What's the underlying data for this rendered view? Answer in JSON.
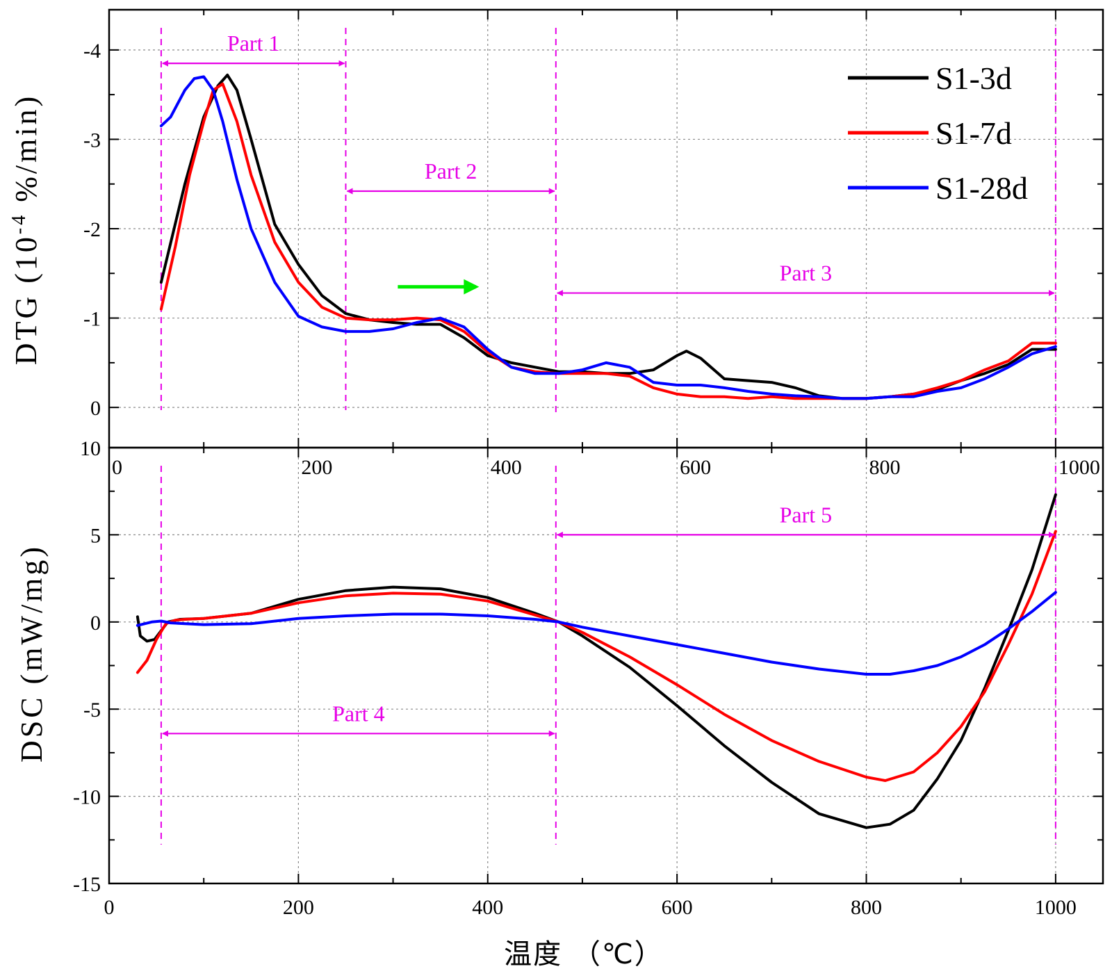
{
  "chart_data": [
    {
      "type": "line",
      "panel": "top",
      "ylabel": "DTG (10⁻⁴ %/min)",
      "ylabel_main": "DTG (10",
      "ylabel_sup": "-4",
      "ylabel_rest": " %/min)",
      "xlim": [
        0,
        1050
      ],
      "ylim": [
        0.45,
        -4.45
      ],
      "yticks": [
        -4,
        -3,
        -2,
        -1,
        0
      ],
      "ytick_labels": [
        "-4",
        "-3",
        "-2",
        "-1",
        "0"
      ],
      "xticks": [
        0,
        200,
        400,
        600,
        800,
        1000
      ],
      "xtick_labels": [
        "0",
        "200",
        "400",
        "600",
        "800",
        "1000"
      ],
      "grid": true,
      "legend_position": "top-right",
      "series": [
        {
          "name": "S1-3d",
          "color": "#000000",
          "x": [
            55,
            80,
            100,
            115,
            125,
            135,
            150,
            175,
            200,
            225,
            250,
            275,
            300,
            325,
            350,
            375,
            400,
            425,
            450,
            475,
            500,
            525,
            550,
            575,
            600,
            610,
            625,
            650,
            675,
            700,
            725,
            750,
            775,
            800,
            825,
            850,
            875,
            900,
            925,
            950,
            975,
            1000
          ],
          "y": [
            -1.4,
            -2.5,
            -3.25,
            -3.6,
            -3.72,
            -3.55,
            -3.0,
            -2.05,
            -1.6,
            -1.25,
            -1.05,
            -0.98,
            -0.95,
            -0.93,
            -0.93,
            -0.78,
            -0.58,
            -0.5,
            -0.45,
            -0.4,
            -0.4,
            -0.38,
            -0.38,
            -0.42,
            -0.58,
            -0.63,
            -0.55,
            -0.32,
            -0.3,
            -0.28,
            -0.22,
            -0.13,
            -0.1,
            -0.1,
            -0.12,
            -0.15,
            -0.2,
            -0.3,
            -0.38,
            -0.48,
            -0.65,
            -0.65
          ]
        },
        {
          "name": "S1-7d",
          "color": "#ff0000",
          "x": [
            55,
            70,
            85,
            100,
            110,
            120,
            135,
            150,
            175,
            200,
            225,
            250,
            275,
            300,
            325,
            350,
            375,
            400,
            425,
            450,
            475,
            500,
            525,
            550,
            575,
            600,
            625,
            650,
            675,
            700,
            725,
            750,
            775,
            800,
            825,
            850,
            875,
            900,
            925,
            950,
            975,
            1000
          ],
          "y": [
            -1.1,
            -1.8,
            -2.6,
            -3.2,
            -3.55,
            -3.62,
            -3.2,
            -2.6,
            -1.85,
            -1.4,
            -1.12,
            -1.0,
            -0.98,
            -0.98,
            -1.0,
            -0.98,
            -0.85,
            -0.62,
            -0.45,
            -0.4,
            -0.38,
            -0.38,
            -0.38,
            -0.35,
            -0.22,
            -0.15,
            -0.12,
            -0.12,
            -0.1,
            -0.12,
            -0.1,
            -0.1,
            -0.1,
            -0.1,
            -0.12,
            -0.15,
            -0.22,
            -0.3,
            -0.42,
            -0.52,
            -0.72,
            -0.72
          ]
        },
        {
          "name": "S1-28d",
          "color": "#0000ff",
          "x": [
            55,
            65,
            80,
            90,
            100,
            110,
            120,
            135,
            150,
            175,
            200,
            225,
            250,
            275,
            300,
            325,
            350,
            375,
            400,
            425,
            450,
            475,
            500,
            525,
            550,
            575,
            600,
            625,
            650,
            675,
            700,
            725,
            750,
            775,
            800,
            825,
            850,
            875,
            900,
            925,
            950,
            975,
            1000
          ],
          "y": [
            -3.15,
            -3.25,
            -3.55,
            -3.68,
            -3.7,
            -3.55,
            -3.2,
            -2.55,
            -2.0,
            -1.4,
            -1.02,
            -0.9,
            -0.85,
            -0.85,
            -0.88,
            -0.95,
            -1.0,
            -0.9,
            -0.65,
            -0.45,
            -0.38,
            -0.38,
            -0.42,
            -0.5,
            -0.45,
            -0.28,
            -0.25,
            -0.25,
            -0.22,
            -0.18,
            -0.15,
            -0.13,
            -0.12,
            -0.1,
            -0.1,
            -0.12,
            -0.12,
            -0.18,
            -0.22,
            -0.32,
            -0.45,
            -0.6,
            -0.68
          ]
        }
      ]
    },
    {
      "type": "line",
      "panel": "bottom",
      "ylabel": "DSC (mW/mg)",
      "xlabel": "温度 （℃）",
      "xlim": [
        0,
        1050
      ],
      "ylim": [
        -15,
        10
      ],
      "yticks": [
        10,
        5,
        0,
        -5,
        -10,
        -15
      ],
      "ytick_labels": [
        "10",
        "5",
        "0",
        "-5",
        "-10",
        "-15"
      ],
      "xticks": [
        0,
        200,
        400,
        600,
        800,
        1000
      ],
      "xtick_labels": [
        "0",
        "200",
        "400",
        "600",
        "800",
        "1000"
      ],
      "grid": true,
      "series": [
        {
          "name": "S1-3d",
          "color": "#000000",
          "x": [
            30,
            33,
            40,
            48,
            55,
            62,
            75,
            100,
            150,
            200,
            250,
            300,
            350,
            400,
            450,
            475,
            500,
            550,
            600,
            650,
            700,
            750,
            800,
            825,
            850,
            875,
            900,
            925,
            950,
            975,
            1000
          ],
          "y": [
            0.3,
            -0.8,
            -1.1,
            -1.0,
            -0.5,
            0.0,
            0.15,
            0.2,
            0.5,
            1.3,
            1.8,
            2.0,
            1.9,
            1.4,
            0.5,
            0.0,
            -0.8,
            -2.6,
            -4.8,
            -7.1,
            -9.2,
            -11.0,
            -11.8,
            -11.6,
            -10.8,
            -9.0,
            -6.8,
            -3.8,
            -0.5,
            3.0,
            7.3
          ]
        },
        {
          "name": "S1-7d",
          "color": "#ff0000",
          "x": [
            30,
            40,
            50,
            60,
            70,
            80,
            100,
            150,
            200,
            250,
            300,
            350,
            400,
            450,
            475,
            500,
            550,
            600,
            650,
            700,
            750,
            800,
            820,
            850,
            875,
            900,
            925,
            950,
            975,
            1000
          ],
          "y": [
            -2.9,
            -2.2,
            -1.0,
            -0.1,
            0.1,
            0.15,
            0.2,
            0.5,
            1.1,
            1.5,
            1.65,
            1.6,
            1.2,
            0.4,
            0.0,
            -0.6,
            -2.0,
            -3.6,
            -5.3,
            -6.8,
            -8.0,
            -8.9,
            -9.1,
            -8.6,
            -7.5,
            -6.0,
            -4.0,
            -1.3,
            1.6,
            5.2
          ]
        },
        {
          "name": "S1-28d",
          "color": "#0000ff",
          "x": [
            30,
            45,
            55,
            65,
            80,
            100,
            150,
            200,
            250,
            300,
            350,
            400,
            450,
            475,
            500,
            550,
            600,
            650,
            700,
            750,
            800,
            825,
            850,
            875,
            900,
            925,
            950,
            975,
            1000
          ],
          "y": [
            -0.2,
            0.0,
            0.05,
            -0.05,
            -0.1,
            -0.15,
            -0.1,
            0.2,
            0.35,
            0.45,
            0.45,
            0.35,
            0.15,
            0.0,
            -0.3,
            -0.8,
            -1.3,
            -1.8,
            -2.3,
            -2.7,
            -3.0,
            -3.0,
            -2.8,
            -2.5,
            -2.0,
            -1.3,
            -0.4,
            0.6,
            1.7
          ]
        }
      ]
    }
  ],
  "parts": [
    {
      "label": "Part 1",
      "panel": "top",
      "from": 55,
      "to": 250,
      "level": -3.85
    },
    {
      "label": "Part 2",
      "panel": "top",
      "from": 250,
      "to": 472,
      "level": -2.42
    },
    {
      "label": "Part 3",
      "panel": "top",
      "from": 472,
      "to": 1000,
      "level": -1.28
    },
    {
      "label": "Part 4",
      "panel": "bottom",
      "from": 55,
      "to": 472,
      "level": -6.4
    },
    {
      "label": "Part 5",
      "panel": "bottom",
      "from": 472,
      "to": 1000,
      "level": 5.0
    }
  ],
  "guide_lines_x": [
    55,
    250,
    472,
    1000
  ],
  "trend_arrow": {
    "color": "#00ee00",
    "from": 305,
    "to": 395,
    "level": -1.35
  }
}
